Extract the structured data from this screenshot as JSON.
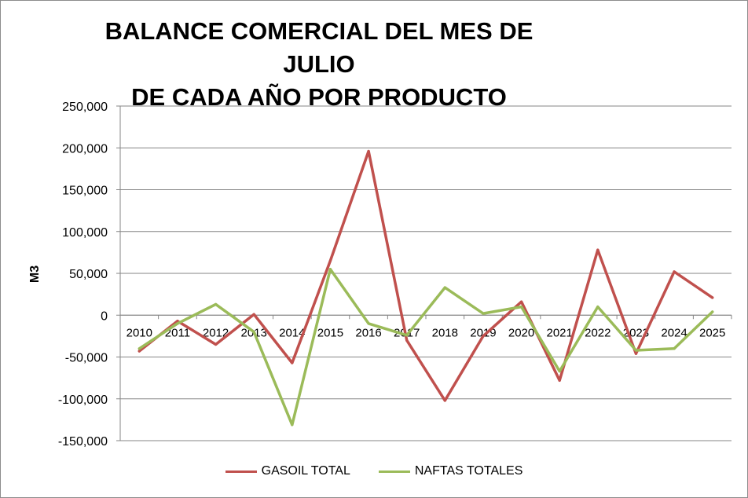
{
  "chart_data": {
    "type": "line",
    "title_line1": "BALANCE COMERCIAL DEL MES DE JULIO",
    "title_line2": "DE CADA AÑO POR PRODUCTO",
    "xlabel": "",
    "ylabel": "M3",
    "ylim": [
      -150000,
      250000
    ],
    "ytick_step": 50000,
    "ytick_labels": [
      "250,000",
      "200,000",
      "150,000",
      "100,000",
      "50,000",
      "0",
      "-50,000",
      "-100,000",
      "-150,000"
    ],
    "categories": [
      "2010",
      "2011",
      "2012",
      "2013",
      "2014",
      "2015",
      "2016",
      "2017",
      "2018",
      "2019",
      "2020",
      "2021",
      "2022",
      "2023",
      "2024",
      "2025"
    ],
    "grid": "horizontal",
    "legend_position": "bottom",
    "series": [
      {
        "name": "GASOIL TOTAL",
        "color": "#c0504d",
        "values": [
          -43000,
          -7000,
          -35000,
          1000,
          -57000,
          65000,
          196000,
          -30000,
          -102000,
          -25000,
          16000,
          -78000,
          78000,
          -46000,
          52000,
          21000
        ]
      },
      {
        "name": "NAFTAS TOTALES",
        "color": "#9bbb59",
        "values": [
          -40000,
          -10000,
          13000,
          -20000,
          -131000,
          55000,
          -10000,
          -24000,
          33000,
          2000,
          10000,
          -67000,
          10000,
          -42000,
          -40000,
          4000
        ]
      }
    ]
  }
}
